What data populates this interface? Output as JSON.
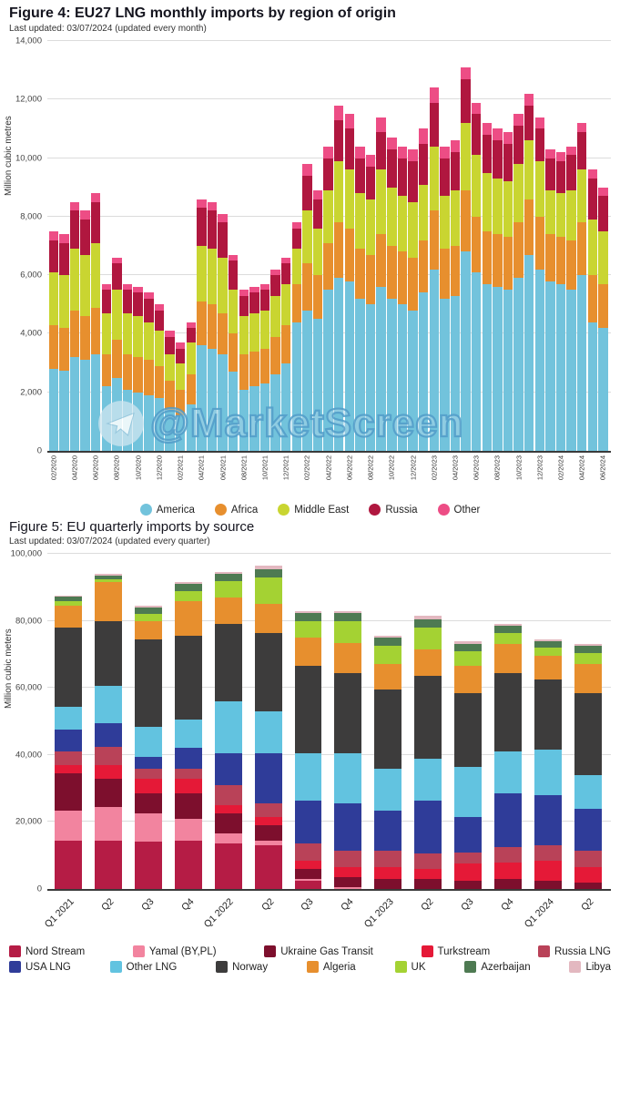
{
  "figure4": {
    "title": "Figure 4: EU27 LNG monthly imports by region of origin",
    "subtitle": "Last updated: 03/07/2024 (updated every month)",
    "ylabel": "Million cubic metres",
    "watermark": {
      "text": "@MarketScreen",
      "icon": "telegram-paper-plane-icon"
    }
  },
  "figure5": {
    "title": "Figure 5: EU quarterly imports by source",
    "subtitle": "Last updated: 03/07/2024 (updated every quarter)",
    "ylabel": "Million cubic meters"
  },
  "chart_data": [
    {
      "type": "bar",
      "stacked": true,
      "title": "Figure 4: EU27 LNG monthly imports by region of origin",
      "xlabel": "",
      "ylabel": "Million cubic metres",
      "ylim": [
        0,
        14000
      ],
      "ytick_step": 2000,
      "grid": true,
      "legend_position": "bottom",
      "label_every": 2,
      "categories": [
        "02/2020",
        "03/2020",
        "04/2020",
        "05/2020",
        "06/2020",
        "07/2020",
        "08/2020",
        "09/2020",
        "10/2020",
        "11/2020",
        "12/2020",
        "01/2021",
        "02/2021",
        "03/2021",
        "04/2021",
        "05/2021",
        "06/2021",
        "07/2021",
        "08/2021",
        "09/2021",
        "10/2021",
        "11/2021",
        "12/2021",
        "01/2022",
        "02/2022",
        "03/2022",
        "04/2022",
        "05/2022",
        "06/2022",
        "07/2022",
        "08/2022",
        "09/2022",
        "10/2022",
        "11/2022",
        "12/2022",
        "01/2023",
        "02/2023",
        "03/2023",
        "04/2023",
        "05/2023",
        "06/2023",
        "07/2023",
        "08/2023",
        "09/2023",
        "10/2023",
        "11/2023",
        "12/2023",
        "01/2024",
        "02/2024",
        "03/2024",
        "04/2024",
        "05/2024",
        "06/2024"
      ],
      "series": [
        {
          "name": "America",
          "color": "#72c3dc",
          "values": [
            2800,
            2750,
            3200,
            3100,
            3300,
            2200,
            2500,
            2100,
            2000,
            1900,
            1800,
            1400,
            1200,
            1600,
            3600,
            3500,
            3300,
            2700,
            2100,
            2200,
            2300,
            2600,
            3000,
            4400,
            4800,
            4500,
            5500,
            5900,
            5800,
            5200,
            5000,
            5600,
            5200,
            5000,
            4800,
            5400,
            6200,
            5200,
            5300,
            6800,
            6100,
            5700,
            5600,
            5500,
            5900,
            6700,
            6200,
            5800,
            5700,
            5500,
            6000,
            4400,
            4200
          ]
        },
        {
          "name": "Africa",
          "color": "#e78f2e",
          "values": [
            1500,
            1450,
            1600,
            1500,
            1600,
            1100,
            1300,
            1200,
            1200,
            1200,
            1100,
            1000,
            900,
            1000,
            1500,
            1500,
            1400,
            1300,
            1200,
            1200,
            1200,
            1300,
            1300,
            1300,
            1600,
            1500,
            1600,
            1900,
            1800,
            1700,
            1700,
            1800,
            1800,
            1800,
            1800,
            1800,
            2000,
            1700,
            1700,
            2100,
            1900,
            1800,
            1800,
            1800,
            1900,
            1900,
            1800,
            1600,
            1600,
            1700,
            1800,
            1600,
            1500
          ]
        },
        {
          "name": "Middle East",
          "color": "#c9d531",
          "values": [
            1800,
            1800,
            2100,
            2100,
            2200,
            1400,
            1700,
            1400,
            1400,
            1300,
            1200,
            900,
            900,
            1100,
            1900,
            1900,
            1900,
            1500,
            1300,
            1300,
            1300,
            1400,
            1400,
            1200,
            1800,
            1600,
            1800,
            2100,
            2000,
            1900,
            1900,
            2200,
            2000,
            1900,
            1900,
            1900,
            2200,
            1800,
            1900,
            2300,
            2100,
            2000,
            1900,
            1900,
            2000,
            2000,
            1900,
            1500,
            1500,
            1700,
            1800,
            1900,
            1800
          ]
        },
        {
          "name": "Russia",
          "color": "#b0173f",
          "values": [
            1100,
            1100,
            1300,
            1200,
            1400,
            800,
            900,
            800,
            800,
            800,
            700,
            600,
            500,
            500,
            1300,
            1300,
            1200,
            1000,
            700,
            700,
            700,
            700,
            700,
            700,
            1200,
            1000,
            1100,
            1400,
            1400,
            1200,
            1100,
            1300,
            1300,
            1300,
            1400,
            1400,
            1500,
            1300,
            1300,
            1500,
            1400,
            1300,
            1300,
            1300,
            1300,
            1200,
            1100,
            1100,
            1100,
            1200,
            1300,
            1400,
            1200
          ]
        },
        {
          "name": "Other",
          "color": "#ed4d85",
          "values": [
            300,
            300,
            300,
            300,
            300,
            200,
            200,
            200,
            200,
            200,
            200,
            200,
            200,
            200,
            300,
            300,
            300,
            200,
            200,
            200,
            200,
            200,
            200,
            200,
            400,
            300,
            400,
            500,
            500,
            400,
            400,
            500,
            400,
            400,
            400,
            500,
            500,
            400,
            400,
            400,
            400,
            400,
            400,
            400,
            400,
            400,
            400,
            300,
            300,
            300,
            300,
            300,
            300
          ]
        }
      ]
    },
    {
      "type": "bar",
      "stacked": true,
      "title": "Figure 5: EU quarterly imports by source",
      "xlabel": "",
      "ylabel": "Million cubic meters",
      "ylim": [
        0,
        100000
      ],
      "ytick_step": 20000,
      "grid": true,
      "legend_position": "bottom",
      "label_every": 1,
      "legend_split": 5,
      "categories": [
        "Q1 2021",
        "Q2",
        "Q3",
        "Q4",
        "Q1 2022",
        "Q2",
        "Q3",
        "Q4",
        "Q1 2023",
        "Q2",
        "Q3",
        "Q4",
        "Q1 2024",
        "Q2"
      ],
      "series": [
        {
          "name": "Nord Stream",
          "color": "#b51c45",
          "values": [
            14500,
            14500,
            14000,
            14500,
            13500,
            13000,
            2500,
            0,
            0,
            0,
            0,
            0,
            0,
            0
          ]
        },
        {
          "name": "Yamal (BY,PL)",
          "color": "#f2849f",
          "values": [
            9000,
            10000,
            8500,
            6500,
            3000,
            1500,
            500,
            500,
            0,
            0,
            0,
            0,
            0,
            0
          ]
        },
        {
          "name": "Ukraine Gas Transit",
          "color": "#7d0f2d",
          "values": [
            11000,
            8500,
            6000,
            7500,
            6000,
            4500,
            3000,
            3000,
            3000,
            3000,
            2500,
            3000,
            2500,
            2000
          ]
        },
        {
          "name": "Turkstream",
          "color": "#e51937",
          "values": [
            2500,
            4000,
            4500,
            4500,
            2500,
            2500,
            2500,
            3000,
            3500,
            3000,
            5000,
            5000,
            6000,
            4500
          ]
        },
        {
          "name": "Russia LNG",
          "color": "#b94258",
          "values": [
            4000,
            5500,
            3000,
            3000,
            6000,
            4000,
            5000,
            5000,
            5000,
            4500,
            3500,
            4500,
            4500,
            5000
          ]
        },
        {
          "name": "USA LNG",
          "color": "#2f3c99",
          "values": [
            6500,
            7000,
            3500,
            6000,
            9500,
            15000,
            13000,
            14000,
            12000,
            16000,
            10500,
            16000,
            15000,
            12500
          ]
        },
        {
          "name": "Other LNG",
          "color": "#62c3e0",
          "values": [
            7000,
            11000,
            9000,
            8500,
            15500,
            12500,
            14000,
            15000,
            12500,
            12500,
            15000,
            12500,
            13500,
            10000
          ]
        },
        {
          "name": "Norway",
          "color": "#3d3c3c",
          "values": [
            23500,
            19500,
            26000,
            25000,
            23000,
            23500,
            26000,
            24000,
            23500,
            24500,
            22000,
            23500,
            21000,
            24500
          ]
        },
        {
          "name": "Algeria",
          "color": "#e78f2e",
          "values": [
            6500,
            11500,
            5500,
            10500,
            8000,
            8500,
            8500,
            9000,
            7500,
            8000,
            8000,
            8500,
            7000,
            8500
          ]
        },
        {
          "name": "UK",
          "color": "#a4d233",
          "values": [
            1500,
            1000,
            2000,
            3000,
            5000,
            8000,
            5000,
            6500,
            5500,
            6500,
            4500,
            3500,
            2500,
            3500
          ]
        },
        {
          "name": "Azerbaijan",
          "color": "#4e7a52",
          "values": [
            1200,
            1000,
            2000,
            2000,
            2000,
            2500,
            2500,
            2500,
            2500,
            2500,
            2000,
            2000,
            2000,
            2000
          ]
        },
        {
          "name": "Libya",
          "color": "#e3b8c0",
          "values": [
            400,
            500,
            500,
            500,
            500,
            1000,
            500,
            500,
            500,
            1000,
            1000,
            500,
            500,
            500
          ]
        }
      ]
    }
  ]
}
